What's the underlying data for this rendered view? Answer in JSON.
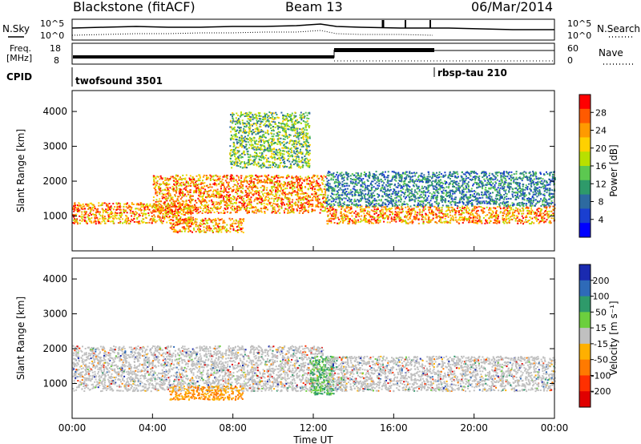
{
  "header": {
    "station": "Blackstone (fitACF)",
    "beam": "Beam 13",
    "date": "06/Mar/2014"
  },
  "noise_panel": {
    "left_label": "N.Sky",
    "right_label": "N.Search",
    "right_line_style": "dotted",
    "left_ticks": [
      "10^5",
      "10^0"
    ],
    "right_ticks": [
      "10^5",
      "10^0"
    ]
  },
  "freq_panel": {
    "left_label_1": "Freq.",
    "left_label_2": "[MHz]",
    "right_label": "Nave",
    "right_line_style": "dotted",
    "left_ticks": [
      "18",
      "8"
    ],
    "right_ticks": [
      "60",
      "0"
    ]
  },
  "cpid_panel": {
    "label": "CPID",
    "segments": [
      {
        "name": "twofsound 3501",
        "start_hour": 0
      },
      {
        "name": "rbsp-tau 210",
        "start_hour": 18
      }
    ]
  },
  "chart_data": [
    {
      "type": "heatmap",
      "name": "power",
      "ylabel": "Slant Range [km]",
      "y_ticks": [
        "1000",
        "2000",
        "3000",
        "4000"
      ],
      "ylim": [
        0,
        4600
      ],
      "xlim_hours": [
        0,
        24
      ],
      "colorbar": {
        "label": "Power [dB]",
        "ticks": [
          "28",
          "24",
          "20",
          "16",
          "12",
          "8",
          "4"
        ],
        "colors": [
          "#ff0000",
          "#ff5a00",
          "#ff9a00",
          "#ffd000",
          "#b8e000",
          "#5cc850",
          "#2e9a6a",
          "#2d6aa0",
          "#1a3fd0",
          "#0000ff"
        ]
      },
      "regions": [
        {
          "hours": [
            0,
            6
          ],
          "ranges_km": [
            800,
            1400
          ],
          "level": "high"
        },
        {
          "hours": [
            4,
            12.6
          ],
          "ranges_km": [
            1100,
            2200
          ],
          "level": "high"
        },
        {
          "hours": [
            4.8,
            8.5
          ],
          "ranges_km": [
            550,
            950
          ],
          "level": "high"
        },
        {
          "hours": [
            7.8,
            11.8
          ],
          "ranges_km": [
            2400,
            4000
          ],
          "level": "medium"
        },
        {
          "hours": [
            12.6,
            24
          ],
          "ranges_km": [
            800,
            1300
          ],
          "level": "high"
        },
        {
          "hours": [
            12.6,
            24
          ],
          "ranges_km": [
            1300,
            2300
          ],
          "level": "low"
        }
      ]
    },
    {
      "type": "heatmap",
      "name": "velocity",
      "ylabel": "Slant Range [km]",
      "y_ticks": [
        "1000",
        "2000",
        "3000",
        "4000"
      ],
      "ylim": [
        0,
        4600
      ],
      "xlim_hours": [
        0,
        24
      ],
      "x_ticks": [
        "00:00",
        "04:00",
        "08:00",
        "12:00",
        "16:00",
        "20:00",
        "00:00"
      ],
      "xlabel": "Time UT",
      "colorbar": {
        "label": "Velocity [m s⁻¹]",
        "ticks": [
          "200",
          "100",
          "50",
          "15",
          "-15",
          "-50",
          "-100",
          "-200"
        ],
        "colors": [
          "#1a2ab0",
          "#2e6ab8",
          "#2e9a6a",
          "#6ccf3e",
          "#c0c0c0",
          "#ffb000",
          "#ff7a00",
          "#ff3000",
          "#e00000"
        ]
      },
      "regions": [
        {
          "hours": [
            0,
            12.5
          ],
          "ranges_km": [
            800,
            2100
          ],
          "level": "ground-scatter"
        },
        {
          "hours": [
            4.8,
            8.5
          ],
          "ranges_km": [
            550,
            950
          ],
          "level": "negative"
        },
        {
          "hours": [
            11.8,
            13
          ],
          "ranges_km": [
            700,
            1800
          ],
          "level": "positive"
        },
        {
          "hours": [
            12.6,
            24
          ],
          "ranges_km": [
            800,
            1800
          ],
          "level": "ground-scatter"
        }
      ]
    }
  ]
}
